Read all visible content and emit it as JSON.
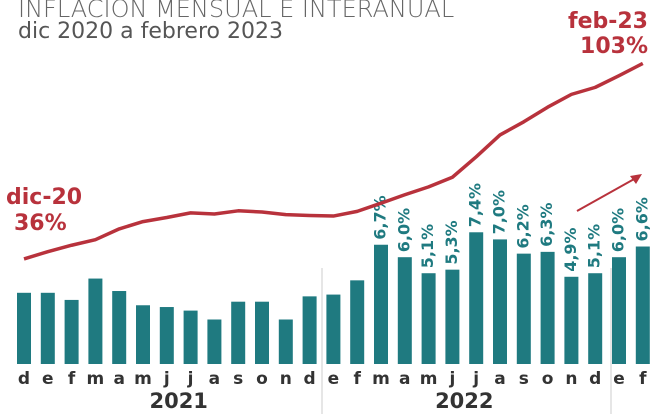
{
  "chart_data": {
    "type": "bar-line",
    "title": "INFLACIÓN MENSUAL E INTERANUAL",
    "subtitle": "dic 2020 a febrero 2023",
    "categories": [
      "d",
      "e",
      "f",
      "m",
      "a",
      "m",
      "j",
      "j",
      "a",
      "s",
      "o",
      "n",
      "d",
      "e",
      "f",
      "m",
      "a",
      "m",
      "j",
      "j",
      "a",
      "s",
      "o",
      "n",
      "d",
      "e",
      "f"
    ],
    "year_labels": [
      "2021",
      "2022"
    ],
    "ylim": [
      0,
      20
    ],
    "y2lim": [
      0,
      122
    ],
    "series": [
      {
        "name": "Mensual",
        "type": "bar",
        "color": "#1f7a80",
        "values": [
          4.0,
          4.0,
          3.6,
          4.8,
          4.1,
          3.3,
          3.2,
          3.0,
          2.5,
          3.5,
          3.5,
          2.5,
          3.8,
          3.9,
          4.7,
          6.7,
          6.0,
          5.1,
          5.3,
          7.4,
          7.0,
          6.2,
          6.3,
          4.9,
          5.1,
          6.0,
          6.6
        ],
        "value_labels": [
          null,
          null,
          null,
          null,
          null,
          null,
          null,
          null,
          null,
          null,
          null,
          null,
          null,
          null,
          null,
          "6,7%",
          "6,0%",
          "5,1%",
          "5,3%",
          "7,4%",
          "7,0%",
          "6,2%",
          "6,3%",
          "4,9%",
          "5,1%",
          "6,0%",
          "6,6%"
        ]
      },
      {
        "name": "Interanual",
        "type": "line",
        "axis": "y2",
        "color": "#b8323c",
        "values": [
          36,
          38.5,
          40.7,
          42.6,
          46.3,
          48.8,
          50.2,
          51.8,
          51.4,
          52.5,
          52.1,
          51.2,
          50.9,
          50.7,
          52.3,
          55.1,
          58.0,
          60.7,
          64.0,
          71.0,
          78.5,
          83.0,
          88.0,
          92.4,
          94.8,
          98.8,
          103
        ],
        "value_labels": [
          "36%",
          null,
          null,
          null,
          null,
          null,
          null,
          null,
          null,
          null,
          null,
          null,
          null,
          null,
          null,
          null,
          null,
          null,
          null,
          null,
          null,
          null,
          null,
          null,
          null,
          null,
          "103%"
        ],
        "annotations": [
          "dic-20",
          "feb-23"
        ]
      }
    ]
  }
}
